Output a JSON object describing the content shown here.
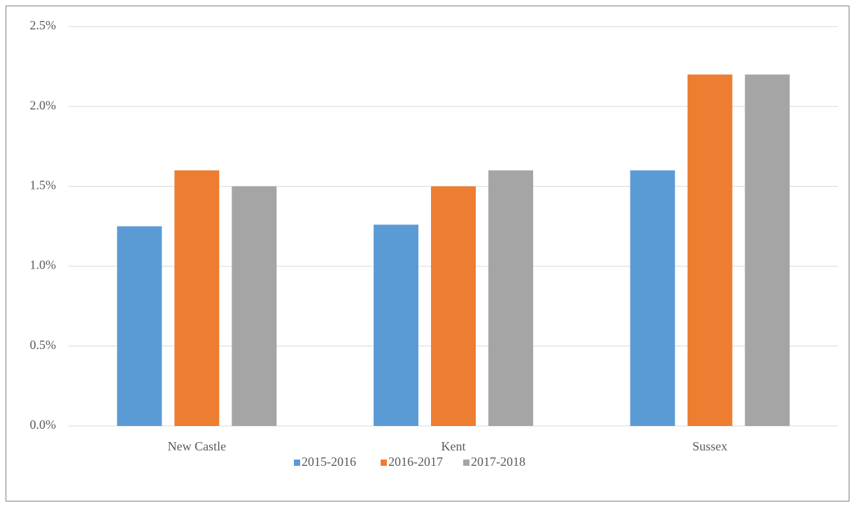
{
  "chart_data": {
    "type": "bar",
    "categories": [
      "New Castle",
      "Kent",
      "Sussex"
    ],
    "series": [
      {
        "name": "2015-2016",
        "color": "#5b9bd5",
        "values": [
          1.25,
          1.26,
          1.6
        ]
      },
      {
        "name": "2016-2017",
        "color": "#ed7d31",
        "values": [
          1.6,
          1.5,
          2.2
        ]
      },
      {
        "name": "2017-2018",
        "color": "#a5a5a5",
        "values": [
          1.5,
          1.6,
          2.2
        ]
      }
    ],
    "ylim": [
      0,
      2.5
    ],
    "yticks": [
      {
        "value": 0,
        "label": "0.0%"
      },
      {
        "value": 0.5,
        "label": "0.5%"
      },
      {
        "value": 1,
        "label": "1.0%"
      },
      {
        "value": 1.5,
        "label": "1.5%"
      },
      {
        "value": 2,
        "label": "2.0%"
      },
      {
        "value": 2.5,
        "label": "2.5%"
      }
    ],
    "grid": true,
    "legend": "bottom"
  }
}
